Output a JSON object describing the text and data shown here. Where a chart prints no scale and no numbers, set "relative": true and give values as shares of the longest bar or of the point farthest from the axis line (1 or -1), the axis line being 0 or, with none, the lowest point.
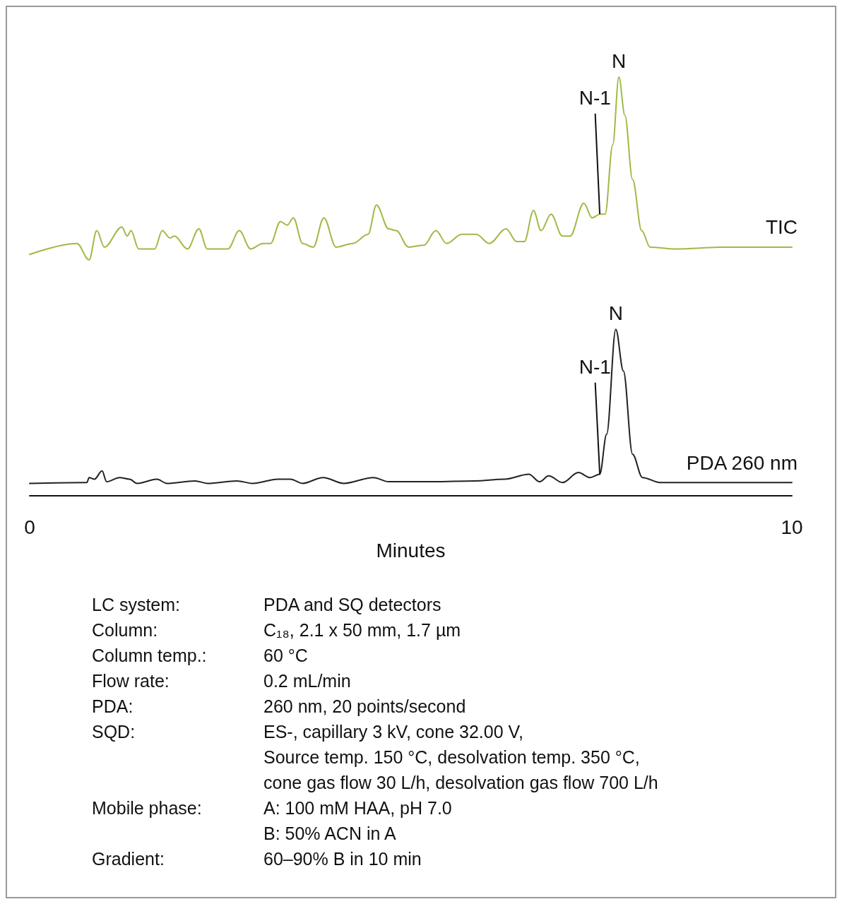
{
  "chart_data": [
    {
      "type": "line",
      "relative": true,
      "xlim": [
        0,
        10
      ],
      "tick_labels": false,
      "marker": "none",
      "line_style": "solid",
      "series": [
        {
          "name": "TIC",
          "color": "#9fba45",
          "x": [
            0,
            0.62,
            0.78,
            0.88,
            0.98,
            1.21,
            1.28,
            1.33,
            1.43,
            1.64,
            1.74,
            1.84,
            1.9,
            2.07,
            2.22,
            2.33,
            2.6,
            2.75,
            2.9,
            3.06,
            3.16,
            3.29,
            3.38,
            3.46,
            3.58,
            3.72,
            3.86,
            4.02,
            4.24,
            4.44,
            4.55,
            4.71,
            4.81,
            4.97,
            5.17,
            5.33,
            5.47,
            5.67,
            5.76,
            5.86,
            6.03,
            6.25,
            6.39,
            6.49,
            6.61,
            6.71,
            6.84,
            6.99,
            7.09,
            7.27,
            7.38,
            7.48,
            7.55,
            7.65,
            7.73,
            7.81,
            7.91,
            8.03,
            8.14,
            8.47,
            9.13,
            10
          ],
          "values": [
            0.03,
            0.09,
            0,
            0.16,
            0.07,
            0.18,
            0.13,
            0.16,
            0.06,
            0.06,
            0.16,
            0.12,
            0.13,
            0.06,
            0.17,
            0.06,
            0.06,
            0.16,
            0.06,
            0.09,
            0.09,
            0.21,
            0.19,
            0.23,
            0.09,
            0.07,
            0.23,
            0.07,
            0.09,
            0.14,
            0.3,
            0.17,
            0.16,
            0.07,
            0.08,
            0.16,
            0.09,
            0.14,
            0.14,
            0.14,
            0.09,
            0.17,
            0.1,
            0.1,
            0.27,
            0.16,
            0.25,
            0.13,
            0.13,
            0.31,
            0.23,
            0.25,
            0.25,
            0.63,
            1,
            0.79,
            0.44,
            0.16,
            0.07,
            0.06,
            0.07,
            0.07
          ]
        }
      ],
      "annotations": [
        {
          "text": "N",
          "x": 7.73,
          "y": 1
        },
        {
          "text": "N-1",
          "x": 7.48,
          "y": 0.25
        }
      ]
    },
    {
      "type": "line",
      "relative": true,
      "xlim": [
        0,
        10
      ],
      "xticks": [
        0,
        10
      ],
      "xlabel": "Minutes",
      "marker": "none",
      "line_style": "solid",
      "series": [
        {
          "name": "PDA 260 nm",
          "color": "#222222",
          "x": [
            0,
            0.75,
            0.78,
            0.85,
            0.95,
            1.01,
            1.18,
            1.31,
            1.41,
            1.67,
            1.8,
            2.17,
            2.33,
            2.72,
            2.92,
            3.26,
            3.42,
            3.58,
            3.85,
            4.12,
            4.51,
            4.71,
            5.3,
            5.83,
            6.23,
            6.55,
            6.69,
            6.81,
            6.99,
            7.2,
            7.35,
            7.48,
            7.57,
            7.69,
            7.79,
            7.91,
            8.04,
            8.27,
            10
          ],
          "values": [
            0.075,
            0.08,
            0.11,
            0.1,
            0.15,
            0.085,
            0.11,
            0.1,
            0.075,
            0.1,
            0.075,
            0.09,
            0.075,
            0.09,
            0.075,
            0.1,
            0.1,
            0.075,
            0.11,
            0.075,
            0.11,
            0.085,
            0.085,
            0.09,
            0.1,
            0.13,
            0.085,
            0.12,
            0.08,
            0.14,
            0.11,
            0.13,
            0.37,
            1,
            0.75,
            0.25,
            0.11,
            0.08,
            0.08
          ]
        }
      ],
      "annotations": [
        {
          "text": "N",
          "x": 7.69,
          "y": 1
        },
        {
          "text": "N-1",
          "x": 7.48,
          "y": 0.13
        },
        "LC system: PDA and SQ detectors",
        "Column: C₁₈, 2.1 x 50 mm, 1.7 µm",
        "Column temp.: 60 °C",
        "Flow rate: 0.2 mL/min",
        "PDA: 260 nm, 20 points/second",
        "SQD: ES-, capillary 3 kV, cone 32.00 V,\nSource temp. 150 °C, desolvation temp. 350 °C,\ncone gas flow 30 L/h, desolvation gas flow 700 L/h",
        "Mobile phase: A: 100 mM HAA, pH 7.0\nB: 50% ACN in A",
        "Gradient: 60–90% B in 10 min"
      ]
    }
  ]
}
